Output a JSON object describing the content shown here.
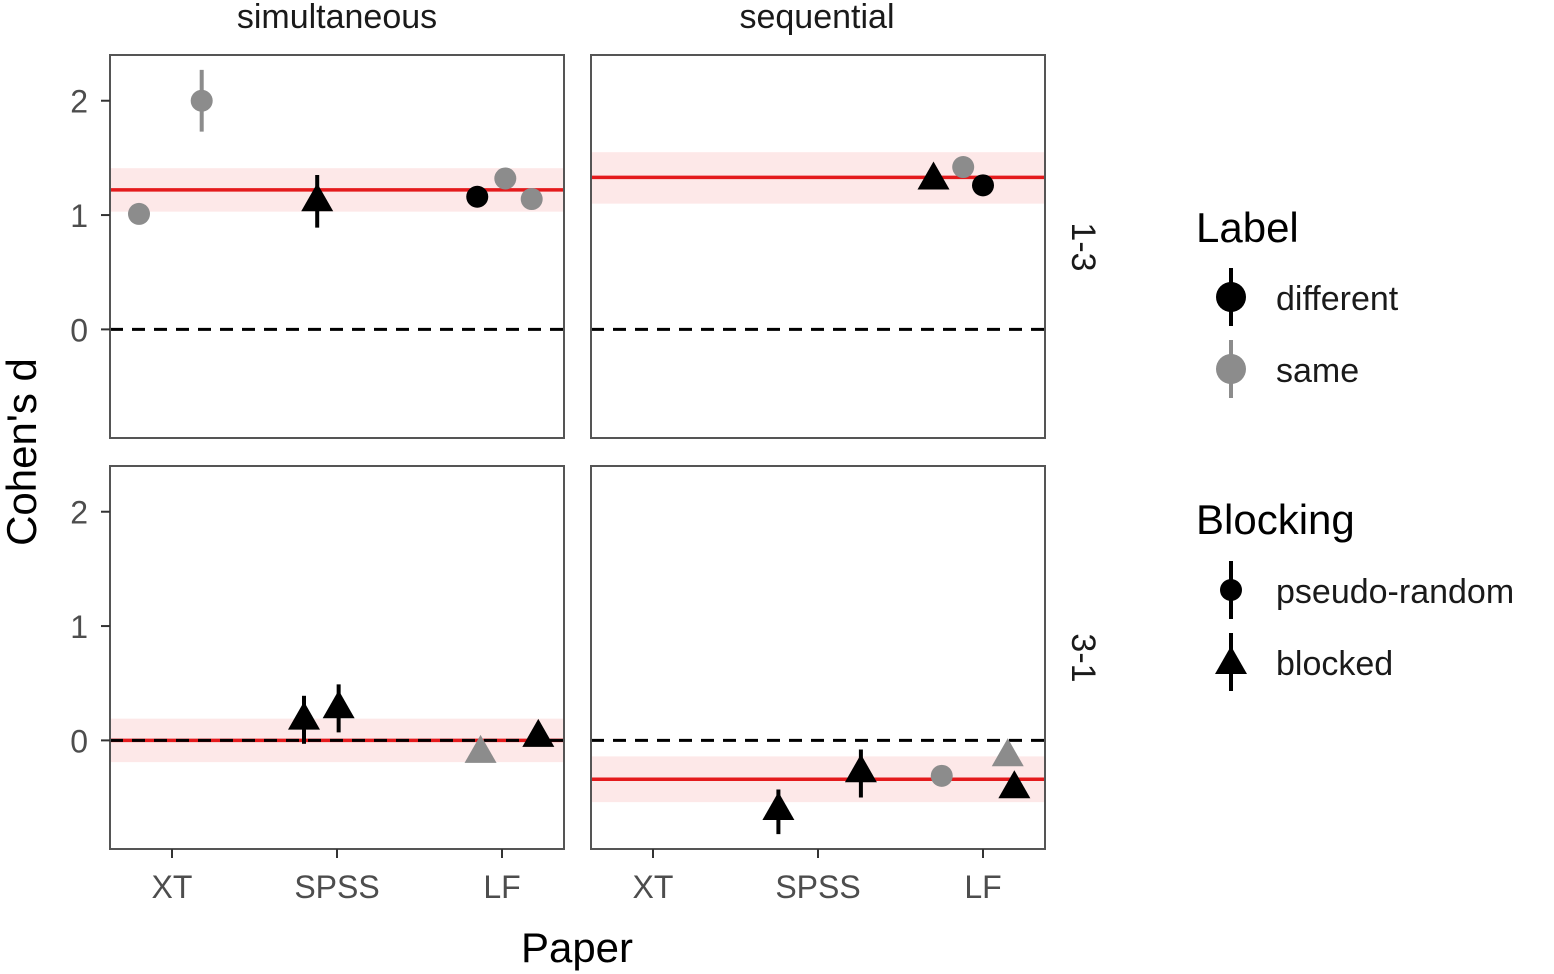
{
  "chart_data": {
    "type": "scatter",
    "xlabel": "Paper",
    "ylabel": "Cohen's d",
    "x_categories": [
      "XT",
      "SPSS",
      "LF"
    ],
    "column_facets": [
      "simultaneous",
      "sequential"
    ],
    "row_facets": [
      "1-3",
      "3-1"
    ],
    "ylim": [
      -0.95,
      2.4
    ],
    "yticks": [
      0,
      1,
      2
    ],
    "zero_line": 0,
    "colors": {
      "different": "#000000",
      "same": "#8c8c8c",
      "meta": "#e41a1c",
      "band": "#fde8e8"
    },
    "legend": {
      "placement": "right",
      "label": {
        "title": "Label",
        "entries": [
          "different",
          "same"
        ]
      },
      "blocking": {
        "title": "Blocking",
        "entries": [
          "pseudo-random",
          "blocked"
        ]
      }
    },
    "panels": [
      {
        "col": "simultaneous",
        "row": "1-3",
        "meta_estimate": 1.22,
        "meta_ci": [
          1.03,
          1.41
        ],
        "points": [
          {
            "paper": "XT",
            "offset": -0.2,
            "d": 1.01,
            "lo": 0.93,
            "hi": 1.1,
            "label": "same",
            "blocking": "pseudo-random"
          },
          {
            "paper": "XT",
            "offset": 0.18,
            "d": 2.0,
            "lo": 1.73,
            "hi": 2.27,
            "label": "same",
            "blocking": "pseudo-random"
          },
          {
            "paper": "SPSS",
            "offset": -0.12,
            "d": 1.13,
            "lo": 0.89,
            "hi": 1.35,
            "label": "different",
            "blocking": "blocked"
          },
          {
            "paper": "LF",
            "offset": -0.15,
            "d": 1.16,
            "lo": 1.1,
            "hi": 1.22,
            "label": "different",
            "blocking": "pseudo-random"
          },
          {
            "paper": "LF",
            "offset": 0.02,
            "d": 1.32,
            "lo": 1.26,
            "hi": 1.38,
            "label": "same",
            "blocking": "pseudo-random"
          },
          {
            "paper": "LF",
            "offset": 0.18,
            "d": 1.14,
            "lo": 1.08,
            "hi": 1.2,
            "label": "same",
            "blocking": "pseudo-random"
          }
        ]
      },
      {
        "col": "sequential",
        "row": "1-3",
        "meta_estimate": 1.33,
        "meta_ci": [
          1.1,
          1.55
        ],
        "points": [
          {
            "paper": "LF",
            "offset": -0.3,
            "d": 1.32,
            "lo": 1.27,
            "hi": 1.37,
            "label": "different",
            "blocking": "blocked"
          },
          {
            "paper": "LF",
            "offset": -0.12,
            "d": 1.42,
            "lo": 1.37,
            "hi": 1.47,
            "label": "same",
            "blocking": "pseudo-random"
          },
          {
            "paper": "LF",
            "offset": 0.0,
            "d": 1.26,
            "lo": 1.21,
            "hi": 1.31,
            "label": "different",
            "blocking": "pseudo-random"
          }
        ]
      },
      {
        "col": "simultaneous",
        "row": "3-1",
        "meta_estimate": 0.0,
        "meta_ci": [
          -0.19,
          0.19
        ],
        "points": [
          {
            "paper": "SPSS",
            "offset": -0.2,
            "d": 0.19,
            "lo": -0.03,
            "hi": 0.39,
            "label": "different",
            "blocking": "blocked"
          },
          {
            "paper": "SPSS",
            "offset": 0.01,
            "d": 0.29,
            "lo": 0.07,
            "hi": 0.49,
            "label": "different",
            "blocking": "blocked"
          },
          {
            "paper": "LF",
            "offset": -0.13,
            "d": -0.1,
            "lo": -0.15,
            "hi": -0.05,
            "label": "same",
            "blocking": "blocked"
          },
          {
            "paper": "LF",
            "offset": 0.22,
            "d": 0.04,
            "lo": -0.01,
            "hi": 0.09,
            "label": "different",
            "blocking": "blocked"
          }
        ]
      },
      {
        "col": "sequential",
        "row": "3-1",
        "meta_estimate": -0.34,
        "meta_ci": [
          -0.54,
          -0.14
        ],
        "points": [
          {
            "paper": "SPSS",
            "offset": -0.24,
            "d": -0.6,
            "lo": -0.82,
            "hi": -0.43,
            "label": "different",
            "blocking": "blocked"
          },
          {
            "paper": "SPSS",
            "offset": 0.26,
            "d": -0.27,
            "lo": -0.5,
            "hi": -0.08,
            "label": "different",
            "blocking": "blocked"
          },
          {
            "paper": "LF",
            "offset": -0.25,
            "d": -0.31,
            "lo": -0.36,
            "hi": -0.26,
            "label": "same",
            "blocking": "pseudo-random"
          },
          {
            "paper": "LF",
            "offset": 0.15,
            "d": -0.13,
            "lo": -0.18,
            "hi": -0.08,
            "label": "same",
            "blocking": "blocked"
          },
          {
            "paper": "LF",
            "offset": 0.19,
            "d": -0.41,
            "lo": -0.46,
            "hi": -0.36,
            "label": "different",
            "blocking": "blocked"
          }
        ]
      }
    ]
  }
}
